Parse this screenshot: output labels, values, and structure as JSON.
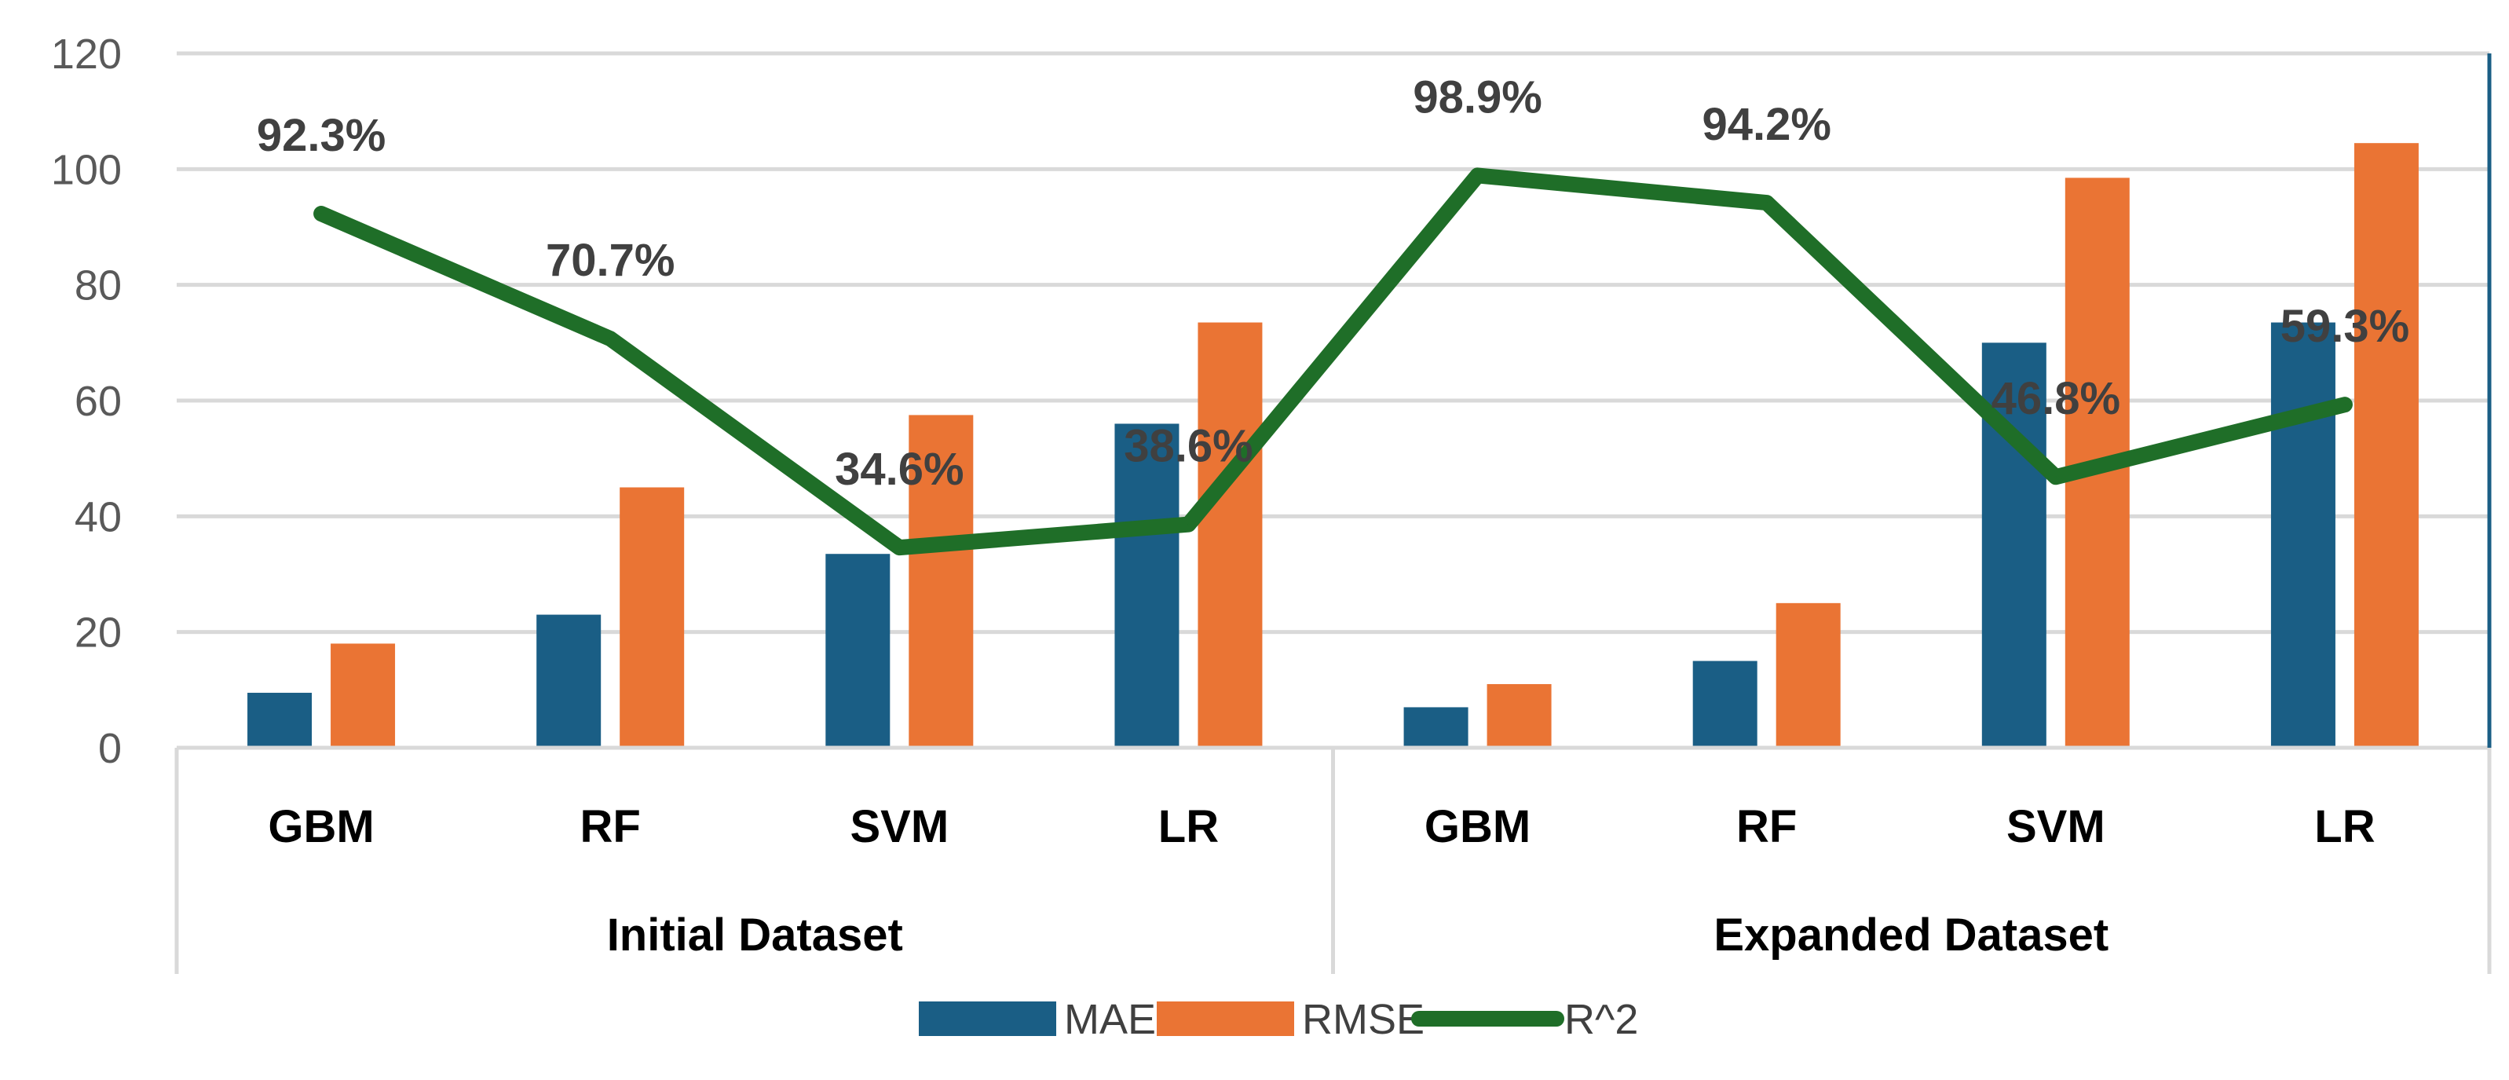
{
  "chart_data": {
    "type": "bar",
    "title": "",
    "xlabel": "",
    "ylabel": "",
    "ylim": [
      0,
      120
    ],
    "yticks": [
      0,
      20,
      40,
      60,
      80,
      100,
      120
    ],
    "grid": true,
    "legend_position": "bottom",
    "groups": [
      {
        "name": "Initial Dataset",
        "categories": [
          "GBM",
          "RF",
          "SVM",
          "LR"
        ]
      },
      {
        "name": "Expanded Dataset",
        "categories": [
          "GBM",
          "RF",
          "SVM",
          "LR"
        ]
      }
    ],
    "series": [
      {
        "name": "MAE",
        "type": "bar",
        "color": "#1a5e85",
        "values": [
          9.5,
          23,
          33.5,
          56,
          7,
          15,
          70,
          73.5
        ]
      },
      {
        "name": "RMSE",
        "type": "bar",
        "color": "#ea7434",
        "values": [
          18,
          45,
          57.5,
          73.5,
          11,
          25,
          98.5,
          104.5
        ]
      },
      {
        "name": "R^2",
        "type": "line",
        "color": "#1f6e28",
        "values": [
          92.3,
          70.7,
          34.6,
          38.6,
          98.9,
          94.2,
          46.8,
          59.3
        ],
        "labels": [
          "92.3%",
          "70.7%",
          "34.6%",
          "38.6%",
          "98.9%",
          "94.2%",
          "46.8%",
          "59.3%"
        ]
      }
    ]
  }
}
